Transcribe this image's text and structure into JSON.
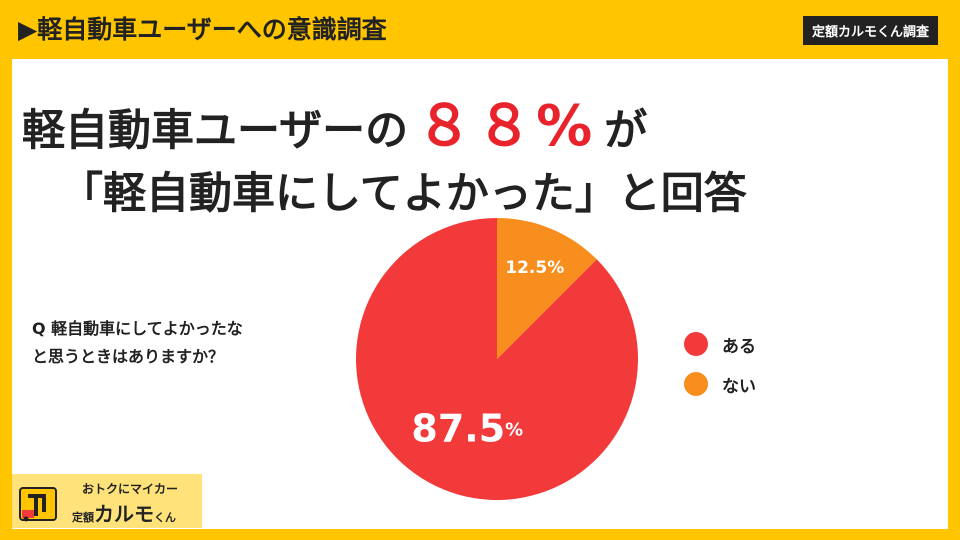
{
  "header": {
    "title": "▶軽自動車ユーザーへの意識調査",
    "badge": "定額カルモくん調査"
  },
  "headline": {
    "line1_pre": "軽自動車ユーザーの",
    "line1_num": "８８%",
    "line1_post": "が",
    "line2": "「軽自動車にしてよかった」と回答"
  },
  "question": {
    "line1": "Q 軽自動車にしてよかったな",
    "line2": "と思うときはありますか？"
  },
  "logo": {
    "top_text": "おトクにマイカー",
    "prefix": "定額",
    "name": "カルモ",
    "suffix": "くん"
  },
  "colors": {
    "yes": "#F33A3A",
    "no": "#F78E1E",
    "background": "#FFC600"
  },
  "chart_data": {
    "type": "pie",
    "categories": [
      "ある",
      "ない"
    ],
    "values": [
      87.5,
      12.5
    ],
    "labels": [
      "87.5%",
      "12.5%"
    ],
    "legend": "right"
  }
}
